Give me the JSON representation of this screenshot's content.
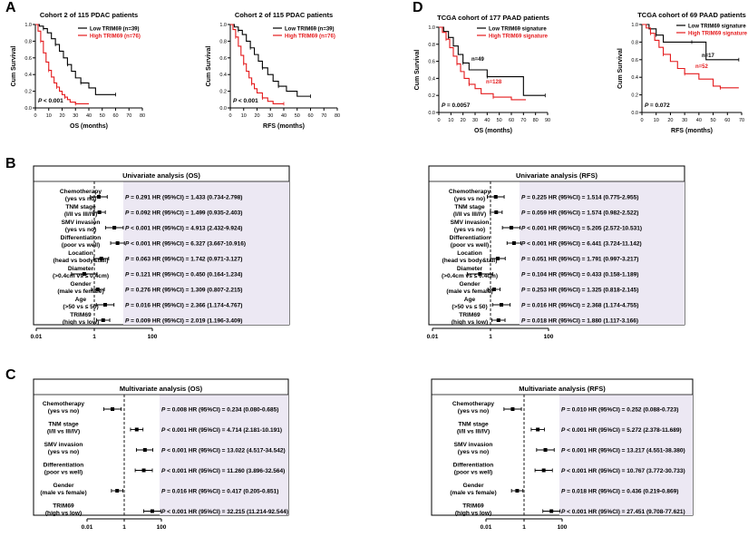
{
  "panel_labels": [
    "A",
    "B",
    "C",
    "D"
  ],
  "colors": {
    "low": "#000000",
    "high": "#e41a1c",
    "shade": "#ece8f3"
  },
  "km_labels": {
    "ylabel": "Cum Survival",
    "yticks": [
      "0.0",
      "0.2",
      "0.4",
      "0.6",
      "0.8",
      "1.0"
    ]
  },
  "forest_labels": {
    "xticks": [
      "0.01",
      "1",
      "100"
    ]
  },
  "chart_data": [
    {
      "type": "line",
      "id": "km-os-115",
      "title": "Cohort 2 of 115 PDAC patients",
      "xlabel": "OS (months)",
      "ylabel": "Cum Survival",
      "xlim": [
        0,
        80
      ],
      "ylim": [
        0,
        1
      ],
      "xticks": [
        0,
        10,
        20,
        30,
        40,
        50,
        60,
        70,
        80
      ],
      "pvalue": "P < 0.001",
      "series": [
        {
          "name": "Low TRIM69 (n=39)",
          "color": "#000000",
          "x": [
            0,
            3,
            6,
            9,
            12,
            15,
            18,
            21,
            24,
            27,
            30,
            34,
            40,
            45,
            60
          ],
          "y": [
            1.0,
            0.98,
            0.95,
            0.9,
            0.83,
            0.76,
            0.68,
            0.6,
            0.52,
            0.44,
            0.36,
            0.3,
            0.24,
            0.16,
            0.16
          ]
        },
        {
          "name": "High TRIM69 (n=76)",
          "color": "#e41a1c",
          "x": [
            0,
            2,
            4,
            6,
            8,
            10,
            12,
            14,
            16,
            18,
            20,
            22,
            24,
            26,
            30,
            34,
            40
          ],
          "y": [
            1.0,
            0.92,
            0.8,
            0.66,
            0.55,
            0.45,
            0.37,
            0.3,
            0.25,
            0.2,
            0.16,
            0.13,
            0.1,
            0.07,
            0.05,
            0.05,
            0.05
          ]
        }
      ]
    },
    {
      "type": "line",
      "id": "km-rfs-115",
      "title": "Cohort 2 of 115 PDAC patients",
      "xlabel": "RFS (months)",
      "ylabel": "Cum Survival",
      "xlim": [
        0,
        80
      ],
      "ylim": [
        0,
        1
      ],
      "xticks": [
        0,
        10,
        20,
        30,
        40,
        50,
        60,
        70,
        80
      ],
      "pvalue": "P < 0.001",
      "series": [
        {
          "name": "Low TRIM69 (n=39)",
          "color": "#000000",
          "x": [
            0,
            3,
            6,
            9,
            12,
            15,
            18,
            21,
            24,
            28,
            32,
            36,
            42,
            50,
            60
          ],
          "y": [
            1.0,
            0.97,
            0.93,
            0.88,
            0.8,
            0.72,
            0.64,
            0.56,
            0.48,
            0.4,
            0.32,
            0.26,
            0.2,
            0.14,
            0.14
          ]
        },
        {
          "name": "High TRIM69 (n=76)",
          "color": "#e41a1c",
          "x": [
            0,
            2,
            4,
            6,
            8,
            10,
            12,
            14,
            16,
            18,
            20,
            24,
            28,
            32,
            40
          ],
          "y": [
            1.0,
            0.94,
            0.85,
            0.74,
            0.63,
            0.53,
            0.44,
            0.36,
            0.29,
            0.23,
            0.18,
            0.12,
            0.08,
            0.05,
            0.05
          ]
        }
      ]
    },
    {
      "type": "line",
      "id": "km-os-tcga",
      "title": "TCGA cohort of 177 PAAD patients",
      "xlabel": "OS (months)",
      "ylabel": "Cum Survival",
      "xlim": [
        0,
        90
      ],
      "ylim": [
        0,
        1
      ],
      "xticks": [
        0,
        10,
        20,
        30,
        40,
        50,
        60,
        70,
        80,
        90
      ],
      "pvalue": "P = 0.0057",
      "series": [
        {
          "name": "Low TRIM69 signature",
          "color": "#000000",
          "n_label": "n=49",
          "x": [
            0,
            4,
            8,
            12,
            16,
            20,
            25,
            30,
            40,
            55,
            70,
            88
          ],
          "y": [
            1.0,
            0.95,
            0.88,
            0.78,
            0.68,
            0.58,
            0.5,
            0.5,
            0.42,
            0.42,
            0.2,
            0.2
          ]
        },
        {
          "name": "High TRIM69 signature",
          "color": "#e41a1c",
          "n_label": "n=128",
          "x": [
            0,
            3,
            6,
            9,
            12,
            15,
            18,
            21,
            25,
            30,
            35,
            45,
            60,
            72
          ],
          "y": [
            1.0,
            0.94,
            0.86,
            0.76,
            0.66,
            0.57,
            0.48,
            0.4,
            0.33,
            0.28,
            0.22,
            0.18,
            0.15,
            0.15
          ]
        }
      ]
    },
    {
      "type": "line",
      "id": "km-rfs-tcga",
      "title": "TCGA cohort of 69 PAAD patients",
      "xlabel": "RFS (months)",
      "ylabel": "Cum Survival",
      "xlim": [
        0,
        70
      ],
      "ylim": [
        0,
        1
      ],
      "xticks": [
        0,
        10,
        20,
        30,
        40,
        50,
        60,
        70
      ],
      "pvalue": "P = 0.072",
      "series": [
        {
          "name": "Low TRIM69 signature",
          "color": "#000000",
          "n_label": "n=17",
          "x": [
            0,
            5,
            10,
            15,
            25,
            35,
            45,
            55,
            68
          ],
          "y": [
            1.0,
            0.95,
            0.88,
            0.8,
            0.8,
            0.8,
            0.6,
            0.6,
            0.6
          ]
        },
        {
          "name": "High TRIM69 signature",
          "color": "#e41a1c",
          "n_label": "n=52",
          "x": [
            0,
            3,
            6,
            9,
            12,
            15,
            20,
            25,
            30,
            40,
            50,
            55,
            68
          ],
          "y": [
            1.0,
            0.96,
            0.9,
            0.82,
            0.74,
            0.66,
            0.58,
            0.5,
            0.44,
            0.38,
            0.3,
            0.28,
            0.28
          ]
        }
      ]
    },
    {
      "type": "forest",
      "id": "uni-os",
      "title": "Univariate analysis (OS)",
      "xticks": [
        "0.01",
        "1",
        "100"
      ],
      "rows": [
        {
          "var": "Chemotherapy",
          "sub": "(yes vs no)",
          "p": "0.291",
          "hr_text": "1.433 (0.734-2.798)",
          "hr": 1.433,
          "lo": 0.734,
          "hi": 2.798
        },
        {
          "var": "TNM stage",
          "sub": "(I/II vs III/IV)",
          "p": "0.092",
          "hr_text": "1.499 (0.935-2.403)",
          "hr": 1.499,
          "lo": 0.935,
          "hi": 2.403
        },
        {
          "var": "SMV invasion",
          "sub": "(yes vs no)",
          "p": "< 0.001",
          "hr_text": "4.913 (2.432-9.924)",
          "hr": 4.913,
          "lo": 2.432,
          "hi": 9.924
        },
        {
          "var": "Differentiation",
          "sub": "(poor vs well)",
          "p": "< 0.001",
          "hr_text": "6.327 (3.667-10.916)",
          "hr": 6.327,
          "lo": 3.667,
          "hi": 10.916
        },
        {
          "var": "Location",
          "sub": "(head vs body&tail)",
          "p": "0.063",
          "hr_text": "1.742 (0.971-3.127)",
          "hr": 1.742,
          "lo": 0.971,
          "hi": 3.127
        },
        {
          "var": "Diameter",
          "sub": "(>0.4cm vs ≤ 0.4cm)",
          "p": "0.121",
          "hr_text": "0.450 (0.164-1.234)",
          "hr": 0.45,
          "lo": 0.164,
          "hi": 1.234
        },
        {
          "var": "Gender",
          "sub": "(male vs female)",
          "p": "0.276",
          "hr_text": "1.309 (0.807-2.215)",
          "hr": 1.309,
          "lo": 0.807,
          "hi": 2.215
        },
        {
          "var": "Age",
          "sub": "(>50 vs ≤ 50)",
          "p": "0.016",
          "hr_text": "2.366 (1.174-4.767)",
          "hr": 2.366,
          "lo": 1.174,
          "hi": 4.767
        },
        {
          "var": "TRIM69",
          "sub": "(high vs low)",
          "p": "0.009",
          "hr_text": "2.019 (1.196-3.409)",
          "hr": 2.019,
          "lo": 1.196,
          "hi": 3.409
        }
      ]
    },
    {
      "type": "forest",
      "id": "uni-rfs",
      "title": "Univariate analysis (RFS)",
      "xticks": [
        "0.01",
        "1",
        "100"
      ],
      "rows": [
        {
          "var": "Chemotherapy",
          "sub": "(yes vs no)",
          "p": "0.225",
          "hr_text": "1.514 (0.775-2.955)",
          "hr": 1.514,
          "lo": 0.775,
          "hi": 2.955
        },
        {
          "var": "TNM stage",
          "sub": "(I/II vs III/IV)",
          "p": "0.059",
          "hr_text": "1.574 (0.982-2.522)",
          "hr": 1.574,
          "lo": 0.982,
          "hi": 2.522
        },
        {
          "var": "SMV invasion",
          "sub": "(yes vs no)",
          "p": "< 0.001",
          "hr_text": "5.205 (2.572-10.531)",
          "hr": 5.205,
          "lo": 2.572,
          "hi": 10.531
        },
        {
          "var": "Differentiation",
          "sub": "(poor vs well)",
          "p": "< 0.001",
          "hr_text": "6.441 (3.724-11.142)",
          "hr": 6.441,
          "lo": 3.724,
          "hi": 11.142
        },
        {
          "var": "Location",
          "sub": "(head vs body&tail)",
          "p": "0.051",
          "hr_text": "1.791 (0.997-3.217)",
          "hr": 1.791,
          "lo": 0.997,
          "hi": 3.217
        },
        {
          "var": "Diameter",
          "sub": "(>0.4cm vs ≤ 0.4cm)",
          "p": "0.104",
          "hr_text": "0.433 (0.158-1.189)",
          "hr": 0.433,
          "lo": 0.158,
          "hi": 1.189
        },
        {
          "var": "Gender",
          "sub": "(male vs female)",
          "p": "0.253",
          "hr_text": "1.325 (0.818-2.145)",
          "hr": 1.325,
          "lo": 0.818,
          "hi": 2.145
        },
        {
          "var": "Age",
          "sub": "(>50 vs ≤ 50)",
          "p": "0.016",
          "hr_text": "2.368 (1.174-4.755)",
          "hr": 2.368,
          "lo": 1.174,
          "hi": 4.755
        },
        {
          "var": "TRIM69",
          "sub": "(high vs low)",
          "p": "0.018",
          "hr_text": "1.880 (1.117-3.166)",
          "hr": 1.88,
          "lo": 1.117,
          "hi": 3.166
        }
      ]
    },
    {
      "type": "forest",
      "id": "multi-os",
      "title": "Multivariate analysis (OS)",
      "xticks": [
        "0.01",
        "1",
        "100"
      ],
      "rows": [
        {
          "var": "Chemotherapy",
          "sub": "(yes vs no)",
          "p": "0.008",
          "hr_text": "0.234 (0.080-0.685)",
          "hr": 0.234,
          "lo": 0.08,
          "hi": 0.685
        },
        {
          "var": "TNM stage",
          "sub": "(I/II vs III/IV)",
          "p": "< 0.001",
          "hr_text": "4.714 (2.181-10.191)",
          "hr": 4.714,
          "lo": 2.181,
          "hi": 10.191
        },
        {
          "var": "SMV invasion",
          "sub": "(yes vs no)",
          "p": "< 0.001",
          "hr_text": "13.022 (4.517-34.542)",
          "hr": 13.022,
          "lo": 4.517,
          "hi": 34.542
        },
        {
          "var": "Differentiation",
          "sub": "(poor vs well)",
          "p": "< 0.001",
          "hr_text": "11.260 (3.896-32.564)",
          "hr": 11.26,
          "lo": 3.896,
          "hi": 32.564
        },
        {
          "var": "Gender",
          "sub": "(male vs female)",
          "p": "0.016",
          "hr_text": "0.417 (0.205-0.851)",
          "hr": 0.417,
          "lo": 0.205,
          "hi": 0.851
        },
        {
          "var": "TRIM69",
          "sub": "(high vs low)",
          "p": "< 0.001",
          "hr_text": "32.215 (11.214-92.544)",
          "hr": 32.215,
          "lo": 11.214,
          "hi": 92.544
        }
      ]
    },
    {
      "type": "forest",
      "id": "multi-rfs",
      "title": "Multivariate analysis (RFS)",
      "xticks": [
        "0.01",
        "1",
        "100"
      ],
      "rows": [
        {
          "var": "Chemotherapy",
          "sub": "(yes vs no)",
          "p": "0.010",
          "hr_text": "0.252 (0.088-0.723)",
          "hr": 0.252,
          "lo": 0.088,
          "hi": 0.723
        },
        {
          "var": "TNM stage",
          "sub": "(I/II vs III/IV)",
          "p": "< 0.001",
          "hr_text": "5.272 (2.378-11.689)",
          "hr": 5.272,
          "lo": 2.378,
          "hi": 11.689
        },
        {
          "var": "SMV invasion",
          "sub": "(yes vs no)",
          "p": "< 0.001",
          "hr_text": "13.217 (4.551-38.380)",
          "hr": 13.217,
          "lo": 4.551,
          "hi": 38.38
        },
        {
          "var": "Differentiation",
          "sub": "(poor vs well)",
          "p": "< 0.001",
          "hr_text": "10.767 (3.772-30.733)",
          "hr": 10.767,
          "lo": 3.772,
          "hi": 30.733
        },
        {
          "var": "Gender",
          "sub": "(male vs female)",
          "p": "0.018",
          "hr_text": "0.436 (0.219-0.869)",
          "hr": 0.436,
          "lo": 0.219,
          "hi": 0.869
        },
        {
          "var": "TRIM69",
          "sub": "(high vs low)",
          "p": "< 0.001",
          "hr_text": "27.451 (9.708-77.621)",
          "hr": 27.451,
          "lo": 9.708,
          "hi": 77.621
        }
      ]
    }
  ]
}
